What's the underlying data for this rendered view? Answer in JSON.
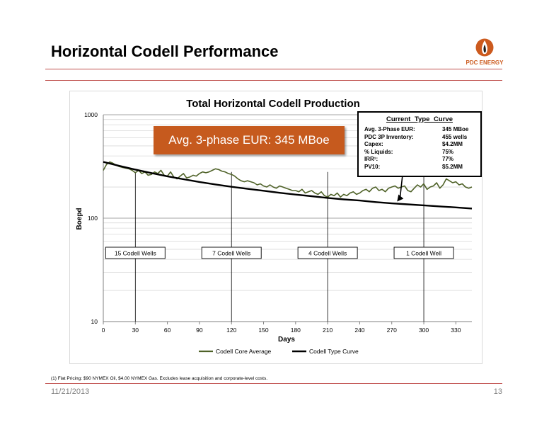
{
  "slide": {
    "title": "Horizontal Codell Performance",
    "logo_text": "PDC ENERGY",
    "footnote": "(1) Flat Pricing: $90 NYMEX Oil, $4.00 NYMEX Gas. Excludes lease acquisition and corporate-level costs.",
    "date": "11/21/2013",
    "page_number": "13"
  },
  "colors": {
    "accent": "#c65a1e",
    "rule": "#c0504d",
    "series_avg": "#4f6228",
    "series_type": "#000000"
  },
  "callouts": {
    "eur_banner": "Avg. 3-phase EUR: 345 MBoe",
    "stats_title": "Current Type Curve",
    "stats": [
      {
        "k": "Avg. 3-Phase EUR:",
        "v": "345 MBoe"
      },
      {
        "k": "PDC 3P Inventory:",
        "v": "455 wells"
      },
      {
        "k": "Capex:",
        "v": "$4.2MM"
      },
      {
        "k": "% Liquids:",
        "v": "75%"
      },
      {
        "k": "IRR¹:",
        "v": "77%"
      },
      {
        "k": "PV10:",
        "v": "$5.2MM"
      }
    ],
    "well_counts": [
      {
        "label": "15 Codell Wells",
        "day": 30
      },
      {
        "label": "7 Codell Wells",
        "day": 120
      },
      {
        "label": "4 Codell Wells",
        "day": 210
      },
      {
        "label": "1 Codell Well",
        "day": 300
      }
    ]
  },
  "chart_data": {
    "type": "line",
    "title": "Total Horizontal Codell Production",
    "xlabel": "Days",
    "ylabel": "Boepd",
    "xlim": [
      0,
      345
    ],
    "ylim": [
      10,
      1000
    ],
    "yscale": "log",
    "x_ticks": [
      "0",
      "30",
      "60",
      "90",
      "120",
      "150",
      "180",
      "210",
      "240",
      "270",
      "300",
      "330"
    ],
    "y_ticks": [
      "10",
      "100",
      "1000"
    ],
    "grid": true,
    "legend_position": "bottom",
    "series": [
      {
        "name": "Codell Core Average",
        "color": "#4f6228",
        "x": [
          0,
          3,
          6,
          9,
          12,
          15,
          18,
          21,
          24,
          27,
          30,
          33,
          36,
          39,
          42,
          45,
          48,
          51,
          54,
          57,
          60,
          63,
          66,
          69,
          72,
          75,
          78,
          81,
          84,
          87,
          90,
          93,
          96,
          99,
          102,
          105,
          108,
          111,
          114,
          117,
          120,
          123,
          126,
          129,
          132,
          135,
          138,
          141,
          144,
          147,
          150,
          153,
          156,
          159,
          162,
          165,
          168,
          171,
          174,
          177,
          180,
          183,
          186,
          189,
          192,
          195,
          198,
          201,
          204,
          207,
          210,
          213,
          216,
          219,
          222,
          225,
          228,
          231,
          234,
          237,
          240,
          243,
          246,
          249,
          252,
          255,
          258,
          261,
          264,
          267,
          270,
          273,
          276,
          279,
          282,
          285,
          288,
          291,
          294,
          297,
          300,
          303,
          306,
          309,
          312,
          315,
          318,
          321,
          324,
          327,
          330,
          333,
          336,
          339,
          342,
          345
        ],
        "y": [
          290,
          330,
          350,
          340,
          325,
          315,
          310,
          305,
          300,
          290,
          275,
          290,
          270,
          280,
          260,
          265,
          280,
          270,
          290,
          260,
          255,
          280,
          250,
          240,
          255,
          270,
          245,
          250,
          260,
          255,
          270,
          280,
          275,
          280,
          290,
          300,
          295,
          285,
          280,
          270,
          265,
          255,
          240,
          230,
          225,
          230,
          225,
          220,
          210,
          215,
          205,
          200,
          210,
          200,
          195,
          205,
          200,
          195,
          190,
          185,
          185,
          180,
          190,
          175,
          180,
          185,
          175,
          170,
          180,
          165,
          160,
          170,
          165,
          175,
          160,
          170,
          165,
          175,
          180,
          170,
          175,
          185,
          190,
          180,
          195,
          200,
          185,
          190,
          180,
          195,
          200,
          205,
          195,
          200,
          205,
          185,
          180,
          195,
          210,
          200,
          215,
          190,
          200,
          205,
          220,
          195,
          210,
          240,
          230,
          220,
          225,
          210,
          215,
          200,
          195,
          200
        ],
        "values_note": ""
      },
      {
        "name": "Codell Type Curve",
        "color": "#000000",
        "x": [
          0,
          15,
          30,
          45,
          60,
          75,
          90,
          105,
          120,
          135,
          150,
          165,
          180,
          195,
          210,
          225,
          240,
          255,
          270,
          285,
          300,
          315,
          330,
          345
        ],
        "y": [
          350,
          320,
          295,
          273,
          254,
          238,
          224,
          212,
          201,
          192,
          184,
          176,
          169,
          163,
          157,
          152,
          148,
          143,
          139,
          136,
          133,
          130,
          127,
          124
        ]
      }
    ]
  }
}
